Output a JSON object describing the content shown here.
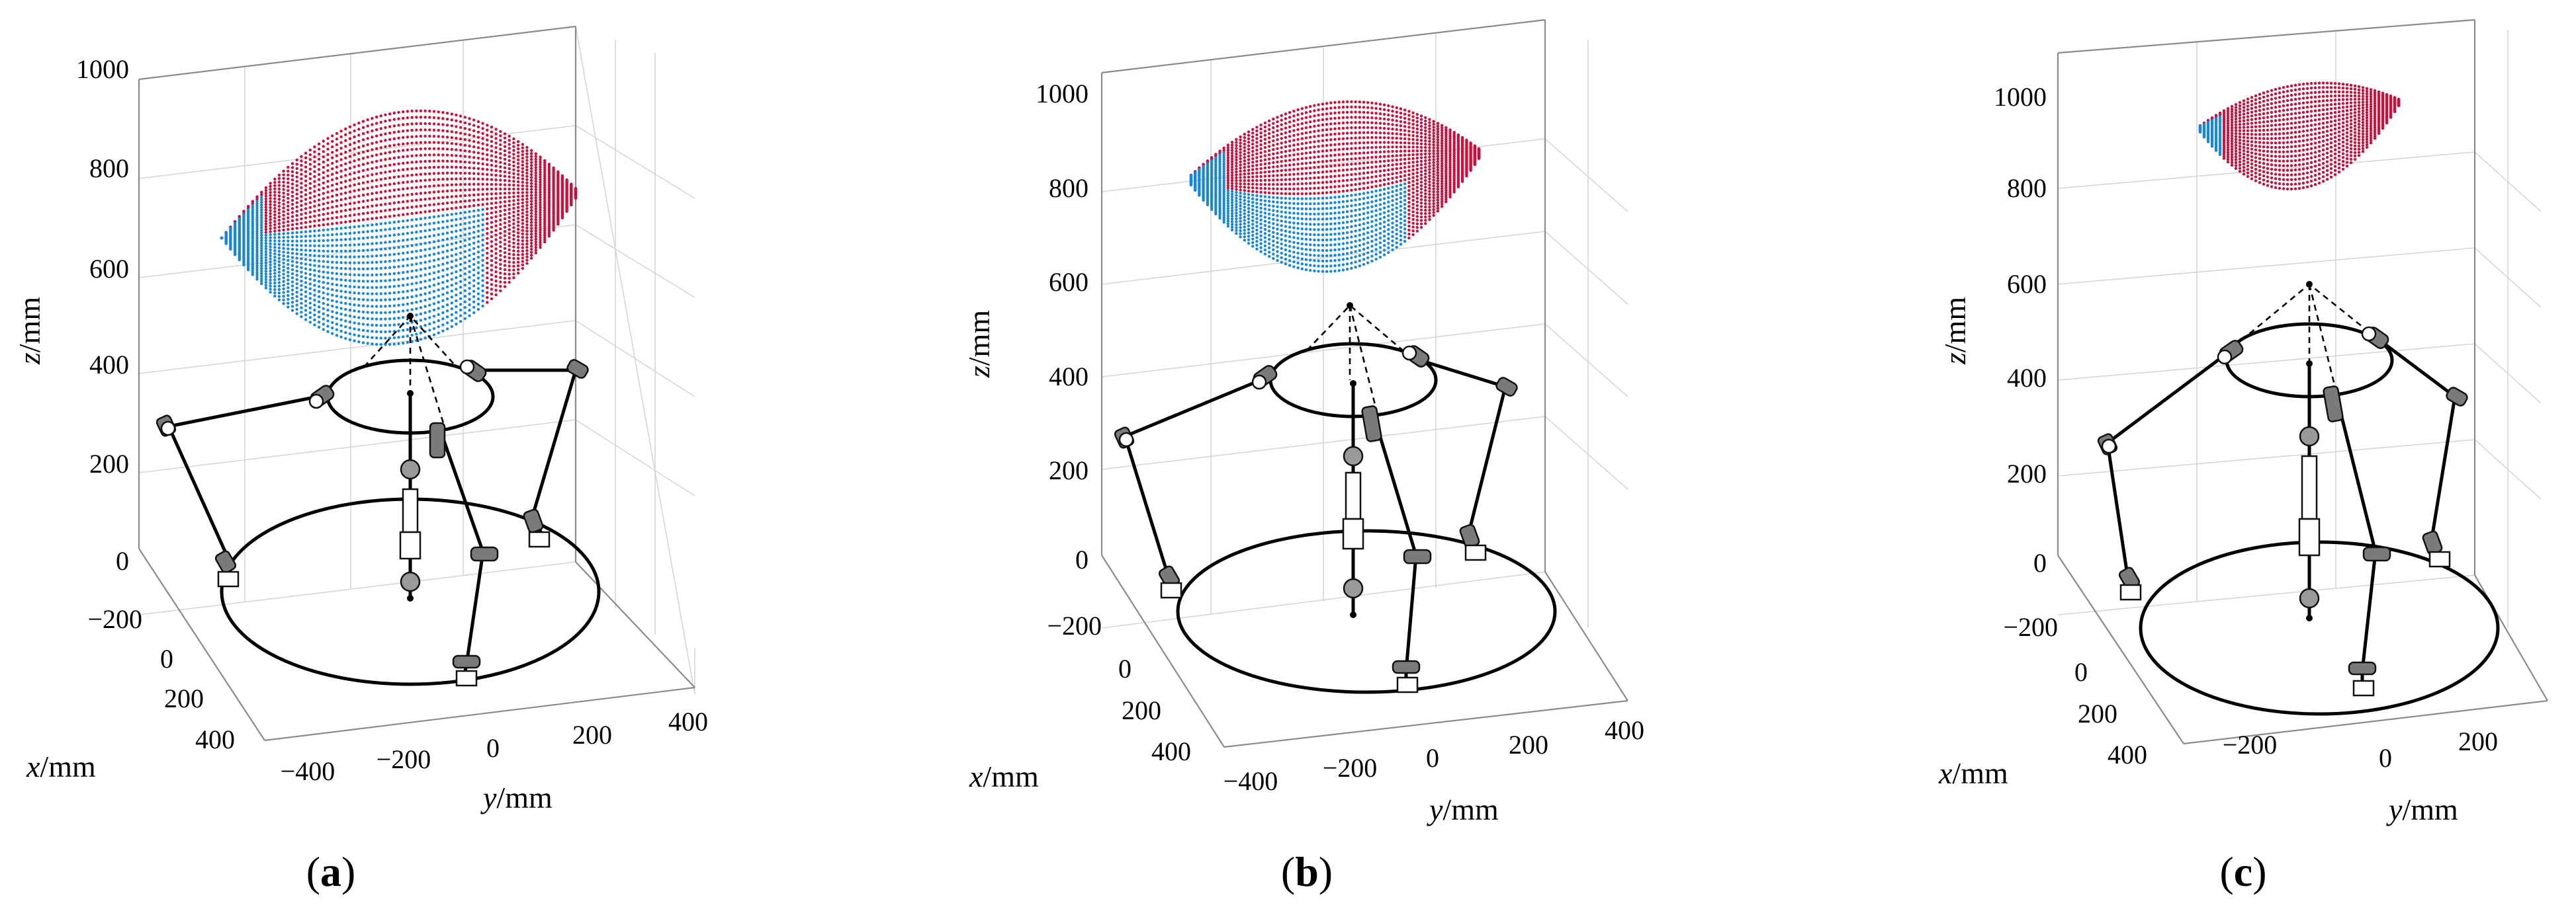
{
  "figure": {
    "panels": [
      {
        "id": "a",
        "label_open": "(",
        "label_letter": "a",
        "label_close": ")",
        "z_ticks": [
          "1000",
          "800",
          "600",
          "400",
          "200",
          "0"
        ],
        "x_ticks": [
          "−200",
          "0",
          "200",
          "400"
        ],
        "y_ticks": [
          "−400",
          "−200",
          "0",
          "200",
          "400"
        ],
        "z_label_var": "z",
        "z_label_unit": "/mm",
        "x_label_var": "x",
        "x_label_unit": "/mm",
        "y_label_var": "y",
        "y_label_unit": "/mm"
      },
      {
        "id": "b",
        "label_open": "(",
        "label_letter": "b",
        "label_close": ")",
        "z_ticks": [
          "1000",
          "800",
          "600",
          "400",
          "200",
          "0"
        ],
        "x_ticks": [
          "−200",
          "0",
          "200",
          "400"
        ],
        "y_ticks": [
          "−400",
          "−200",
          "0",
          "200",
          "400"
        ],
        "z_label_var": "z",
        "z_label_unit": "/mm",
        "x_label_var": "x",
        "x_label_unit": "/mm",
        "y_label_var": "y",
        "y_label_unit": "/mm"
      },
      {
        "id": "c",
        "label_open": "(",
        "label_letter": "c",
        "label_close": ")",
        "z_ticks": [
          "1000",
          "800",
          "600",
          "400",
          "200",
          "0"
        ],
        "x_ticks": [
          "−200",
          "0",
          "200",
          "400"
        ],
        "y_ticks": [
          "−200",
          "0",
          "200"
        ],
        "z_label_var": "z",
        "z_label_unit": "/mm",
        "x_label_var": "x",
        "x_label_unit": "/mm",
        "y_label_var": "y",
        "y_label_unit": "/mm"
      }
    ],
    "colors": {
      "workspace_red": "#c8103c",
      "workspace_blue": "#1a86d6",
      "mechanism": "#000000",
      "grid": "#d6d6d6"
    }
  }
}
